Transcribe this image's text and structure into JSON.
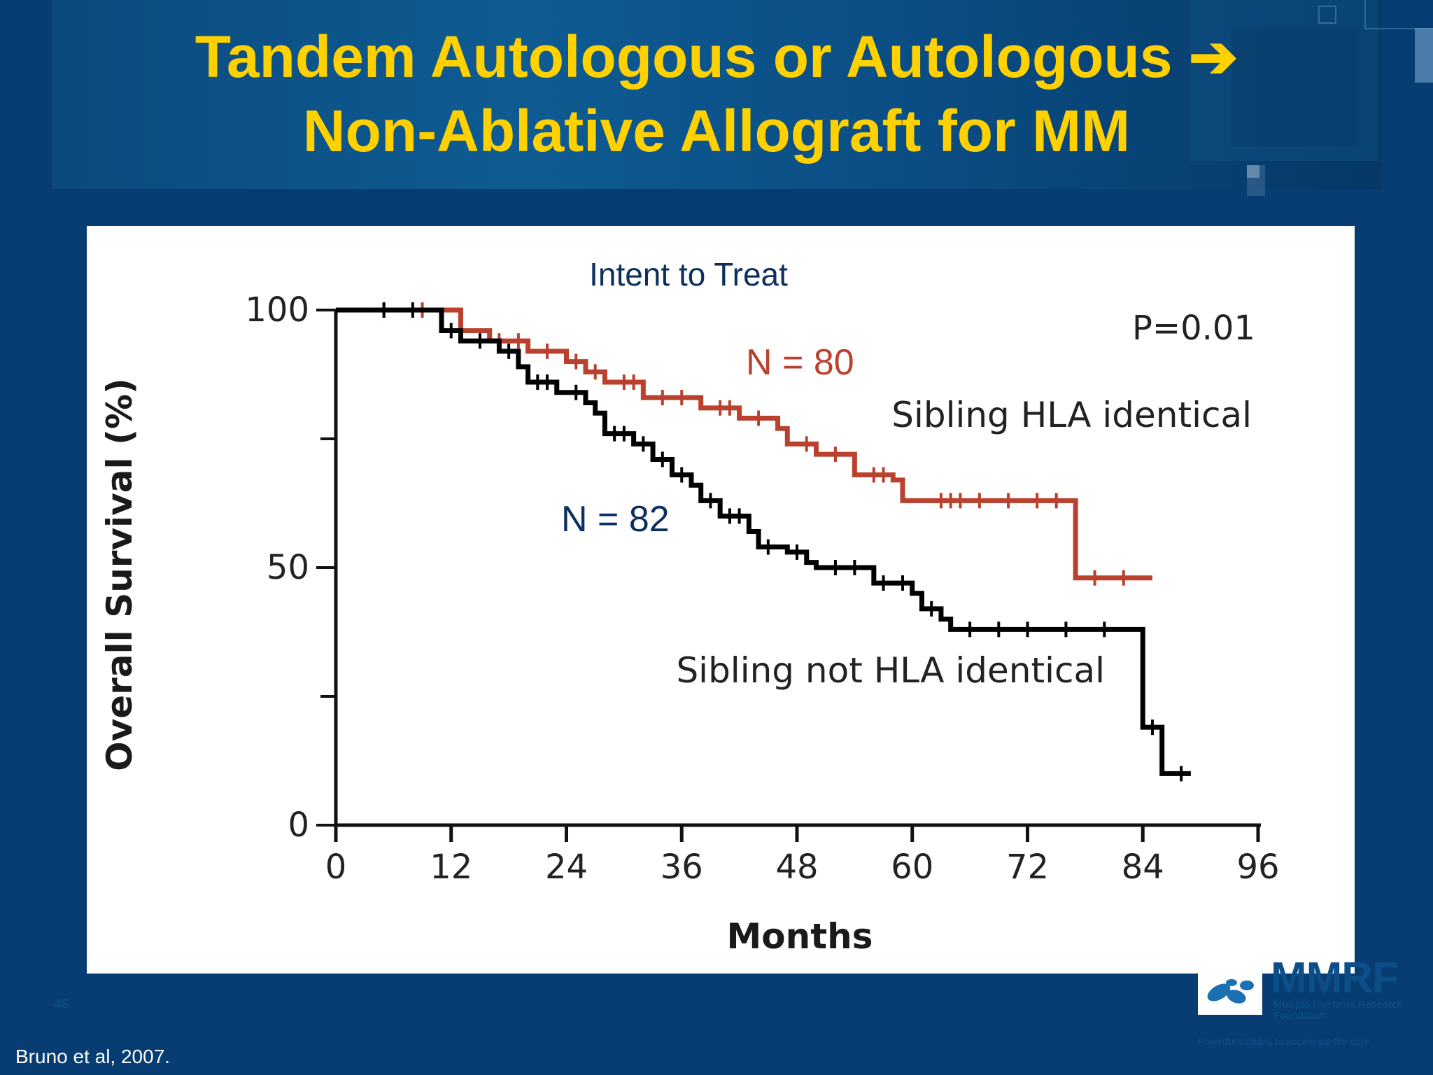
{
  "slide": {
    "title_line1": "Tandem Autologous or Autologous ➔",
    "title_line2": "Non-Ablative Allograft for MM",
    "citation": "Bruno et al, 2007.",
    "page_number": "46",
    "logo": {
      "name": "MMRF",
      "sub": "Multiple Myeloma Research Foundation",
      "tagline": "Powerful thinking to accelerate the cure"
    }
  },
  "colors": {
    "title": "#ffd100",
    "background": "#073d72",
    "sibling_identical": "#b9412d",
    "sibling_not_identical": "#000000",
    "annotation_navy": "#0b2f5e"
  },
  "chart_data": {
    "type": "line",
    "title": "Intent to Treat",
    "xlabel": "Months",
    "ylabel": "Overall Survival (%)",
    "xlim": [
      0,
      96
    ],
    "ylim": [
      0,
      100
    ],
    "xticks": [
      0,
      12,
      24,
      36,
      48,
      60,
      72,
      84,
      96
    ],
    "yticks": [
      0,
      50,
      100
    ],
    "yticks_minor": [
      25,
      75
    ],
    "grid": false,
    "annotations": {
      "p_value": "P=0.01",
      "n_identical": "N = 80",
      "n_not_identical": "N = 82"
    },
    "series": [
      {
        "name": "Sibling HLA identical",
        "color": "#b9412d",
        "x": [
          0,
          12,
          13,
          16,
          20,
          24,
          26,
          28,
          32,
          38,
          42,
          46,
          47,
          50,
          54,
          58,
          59,
          77,
          77,
          85
        ],
        "y": [
          100,
          100,
          96,
          94,
          92,
          90,
          88,
          86,
          83,
          81,
          79,
          77,
          74,
          72,
          68,
          67,
          63,
          63,
          48,
          48
        ],
        "censor_x": [
          5,
          9,
          17,
          19,
          22,
          25,
          27,
          30,
          31,
          34,
          36,
          40,
          41,
          44,
          49,
          52,
          56,
          57,
          63,
          64,
          65,
          67,
          70,
          73,
          75,
          79,
          82
        ]
      },
      {
        "name": "Sibling not HLA identical",
        "color": "#000000",
        "x": [
          0,
          10,
          11,
          13,
          17,
          19,
          20,
          23,
          26,
          27,
          28,
          31,
          33,
          35,
          37,
          38,
          40,
          43,
          44,
          47,
          49,
          50,
          56,
          60,
          61,
          63,
          64,
          83,
          84,
          84,
          86,
          86,
          89
        ],
        "y": [
          100,
          100,
          96,
          94,
          92,
          89,
          86,
          84,
          82,
          80,
          76,
          74,
          71,
          68,
          66,
          63,
          60,
          57,
          54,
          53,
          51,
          50,
          47,
          45,
          42,
          40,
          38,
          38,
          28,
          19,
          19,
          10,
          10
        ],
        "censor_x": [
          5,
          8,
          12,
          15,
          18,
          21,
          22,
          25,
          29,
          30,
          32,
          34,
          36,
          39,
          41,
          42,
          45,
          48,
          52,
          54,
          57,
          59,
          62,
          66,
          69,
          72,
          76,
          80,
          85,
          88
        ]
      }
    ]
  }
}
